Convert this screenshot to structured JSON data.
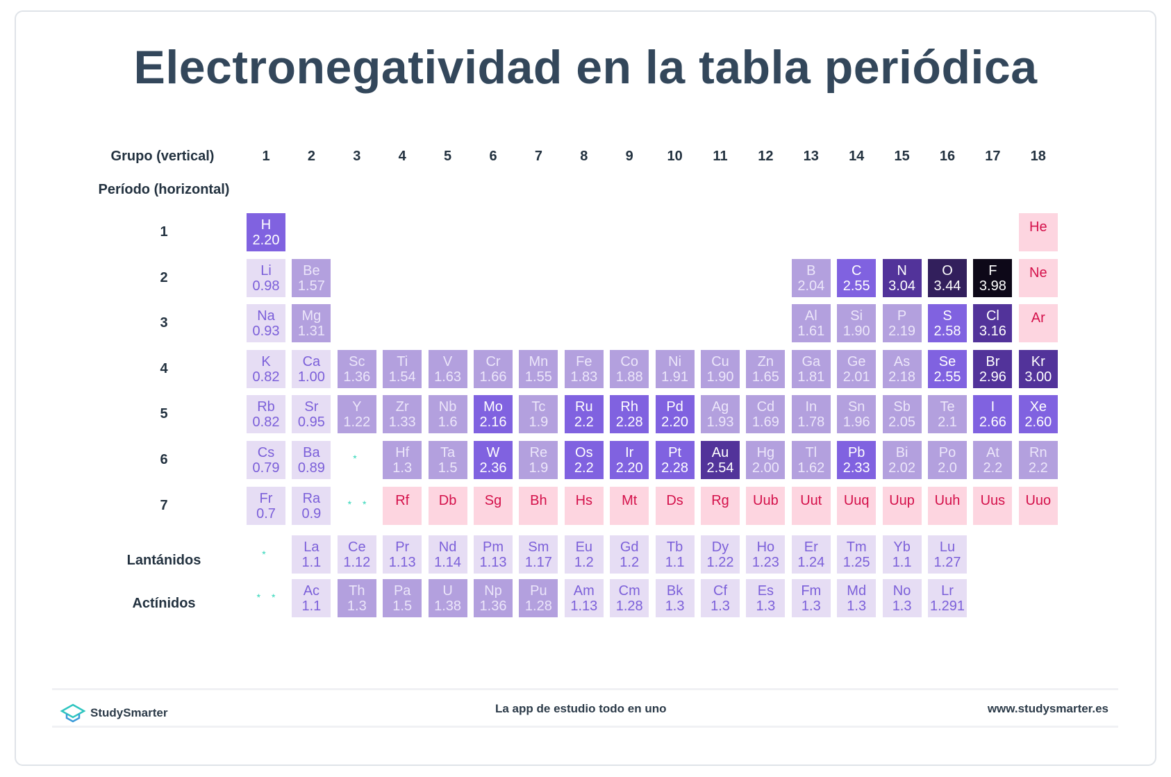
{
  "title": "Electronegatividad en la tabla periódica",
  "group_label": "Grupo (vertical)",
  "period_label": "Período (horizontal)",
  "groups": [
    "1",
    "2",
    "3",
    "4",
    "5",
    "6",
    "7",
    "8",
    "9",
    "10",
    "11",
    "12",
    "13",
    "14",
    "15",
    "16",
    "17",
    "18"
  ],
  "periods": [
    "1",
    "2",
    "3",
    "4",
    "5",
    "6",
    "7"
  ],
  "lanthanides_label": "Lantánidos",
  "actinides_label": "Actínidos",
  "lanthanide_marker": "*",
  "actinide_marker": "* *",
  "colors": {
    "light": "#e6ddf4",
    "mid": "#b3a0de",
    "bright": "#8062e0",
    "dark": "#52339a",
    "darker": "#321f5c",
    "darkest": "#0d0818",
    "no_data": "#fdd5e0",
    "no_data_text": "#d4104a"
  },
  "chart_data": {
    "type": "table",
    "title": "Electronegatividad en la tabla periódica",
    "levels": {
      "l": "light",
      "m": "mid",
      "b": "bright",
      "d": "dark",
      "o": "darker",
      "f": "darkest",
      "p": "no data"
    },
    "rows": [
      [
        [
          1,
          "H",
          "2.20",
          "b"
        ],
        [
          18,
          "He",
          "",
          "p"
        ]
      ],
      [
        [
          1,
          "Li",
          "0.98",
          "l"
        ],
        [
          2,
          "Be",
          "1.57",
          "m"
        ],
        [
          13,
          "B",
          "2.04",
          "m"
        ],
        [
          14,
          "C",
          "2.55",
          "b"
        ],
        [
          15,
          "N",
          "3.04",
          "d"
        ],
        [
          16,
          "O",
          "3.44",
          "o"
        ],
        [
          17,
          "F",
          "3.98",
          "f"
        ],
        [
          18,
          "Ne",
          "",
          "p"
        ]
      ],
      [
        [
          1,
          "Na",
          "0.93",
          "l"
        ],
        [
          2,
          "Mg",
          "1.31",
          "m"
        ],
        [
          13,
          "Al",
          "1.61",
          "m"
        ],
        [
          14,
          "Si",
          "1.90",
          "m"
        ],
        [
          15,
          "P",
          "2.19",
          "m"
        ],
        [
          16,
          "S",
          "2.58",
          "b"
        ],
        [
          17,
          "Cl",
          "3.16",
          "d"
        ],
        [
          18,
          "Ar",
          "",
          "p"
        ]
      ],
      [
        [
          1,
          "K",
          "0.82",
          "l"
        ],
        [
          2,
          "Ca",
          "1.00",
          "l"
        ],
        [
          3,
          "Sc",
          "1.36",
          "m"
        ],
        [
          4,
          "Ti",
          "1.54",
          "m"
        ],
        [
          5,
          "V",
          "1.63",
          "m"
        ],
        [
          6,
          "Cr",
          "1.66",
          "m"
        ],
        [
          7,
          "Mn",
          "1.55",
          "m"
        ],
        [
          8,
          "Fe",
          "1.83",
          "m"
        ],
        [
          9,
          "Co",
          "1.88",
          "m"
        ],
        [
          10,
          "Ni",
          "1.91",
          "m"
        ],
        [
          11,
          "Cu",
          "1.90",
          "m"
        ],
        [
          12,
          "Zn",
          "1.65",
          "m"
        ],
        [
          13,
          "Ga",
          "1.81",
          "m"
        ],
        [
          14,
          "Ge",
          "2.01",
          "m"
        ],
        [
          15,
          "As",
          "2.18",
          "m"
        ],
        [
          16,
          "Se",
          "2.55",
          "b"
        ],
        [
          17,
          "Br",
          "2.96",
          "d"
        ],
        [
          18,
          "Kr",
          "3.00",
          "d"
        ]
      ],
      [
        [
          1,
          "Rb",
          "0.82",
          "l"
        ],
        [
          2,
          "Sr",
          "0.95",
          "l"
        ],
        [
          3,
          "Y",
          "1.22",
          "m"
        ],
        [
          4,
          "Zr",
          "1.33",
          "m"
        ],
        [
          5,
          "Nb",
          "1.6",
          "m"
        ],
        [
          6,
          "Mo",
          "2.16",
          "b"
        ],
        [
          7,
          "Tc",
          "1.9",
          "m"
        ],
        [
          8,
          "Ru",
          "2.2",
          "b"
        ],
        [
          9,
          "Rh",
          "2.28",
          "b"
        ],
        [
          10,
          "Pd",
          "2.20",
          "b"
        ],
        [
          11,
          "Ag",
          "1.93",
          "m"
        ],
        [
          12,
          "Cd",
          "1.69",
          "m"
        ],
        [
          13,
          "In",
          "1.78",
          "m"
        ],
        [
          14,
          "Sn",
          "1.96",
          "m"
        ],
        [
          15,
          "Sb",
          "2.05",
          "m"
        ],
        [
          16,
          "Te",
          "2.1",
          "m"
        ],
        [
          17,
          "I",
          "2.66",
          "b"
        ],
        [
          18,
          "Xe",
          "2.60",
          "b"
        ]
      ],
      [
        [
          1,
          "Cs",
          "0.79",
          "l"
        ],
        [
          2,
          "Ba",
          "0.89",
          "l"
        ],
        [
          4,
          "Hf",
          "1.3",
          "m"
        ],
        [
          5,
          "Ta",
          "1.5",
          "m"
        ],
        [
          6,
          "W",
          "2.36",
          "b"
        ],
        [
          7,
          "Re",
          "1.9",
          "m"
        ],
        [
          8,
          "Os",
          "2.2",
          "b"
        ],
        [
          9,
          "Ir",
          "2.20",
          "b"
        ],
        [
          10,
          "Pt",
          "2.28",
          "b"
        ],
        [
          11,
          "Au",
          "2.54",
          "d"
        ],
        [
          12,
          "Hg",
          "2.00",
          "m"
        ],
        [
          13,
          "Tl",
          "1.62",
          "m"
        ],
        [
          14,
          "Pb",
          "2.33",
          "b"
        ],
        [
          15,
          "Bi",
          "2.02",
          "m"
        ],
        [
          16,
          "Po",
          "2.0",
          "m"
        ],
        [
          17,
          "At",
          "2.2",
          "m"
        ],
        [
          18,
          "Rn",
          "2.2",
          "m"
        ]
      ],
      [
        [
          1,
          "Fr",
          "0.7",
          "l"
        ],
        [
          2,
          "Ra",
          "0.9",
          "l"
        ],
        [
          4,
          "Rf",
          "",
          "p"
        ],
        [
          5,
          "Db",
          "",
          "p"
        ],
        [
          6,
          "Sg",
          "",
          "p"
        ],
        [
          7,
          "Bh",
          "",
          "p"
        ],
        [
          8,
          "Hs",
          "",
          "p"
        ],
        [
          9,
          "Mt",
          "",
          "p"
        ],
        [
          10,
          "Ds",
          "",
          "p"
        ],
        [
          11,
          "Rg",
          "",
          "p"
        ],
        [
          12,
          "Uub",
          "",
          "p"
        ],
        [
          13,
          "Uut",
          "",
          "p"
        ],
        [
          14,
          "Uuq",
          "",
          "p"
        ],
        [
          15,
          "Uup",
          "",
          "p"
        ],
        [
          16,
          "Uuh",
          "",
          "p"
        ],
        [
          17,
          "Uus",
          "",
          "p"
        ],
        [
          18,
          "Uuo",
          "",
          "p"
        ]
      ]
    ],
    "lanthanides": [
      [
        "La",
        "1.1",
        "l"
      ],
      [
        "Ce",
        "1.12",
        "l"
      ],
      [
        "Pr",
        "1.13",
        "l"
      ],
      [
        "Nd",
        "1.14",
        "l"
      ],
      [
        "Pm",
        "1.13",
        "l"
      ],
      [
        "Sm",
        "1.17",
        "l"
      ],
      [
        "Eu",
        "1.2",
        "l"
      ],
      [
        "Gd",
        "1.2",
        "l"
      ],
      [
        "Tb",
        "1.1",
        "l"
      ],
      [
        "Dy",
        "1.22",
        "l"
      ],
      [
        "Ho",
        "1.23",
        "l"
      ],
      [
        "Er",
        "1.24",
        "l"
      ],
      [
        "Tm",
        "1.25",
        "l"
      ],
      [
        "Yb",
        "1.1",
        "l"
      ],
      [
        "Lu",
        "1.27",
        "l"
      ]
    ],
    "actinides": [
      [
        "Ac",
        "1.1",
        "l"
      ],
      [
        "Th",
        "1.3",
        "m"
      ],
      [
        "Pa",
        "1.5",
        "m"
      ],
      [
        "U",
        "1.38",
        "m"
      ],
      [
        "Np",
        "1.36",
        "m"
      ],
      [
        "Pu",
        "1.28",
        "m"
      ],
      [
        "Am",
        "1.13",
        "l"
      ],
      [
        "Cm",
        "1.28",
        "l"
      ],
      [
        "Bk",
        "1.3",
        "l"
      ],
      [
        "Cf",
        "1.3",
        "l"
      ],
      [
        "Es",
        "1.3",
        "l"
      ],
      [
        "Fm",
        "1.3",
        "l"
      ],
      [
        "Md",
        "1.3",
        "l"
      ],
      [
        "No",
        "1.3",
        "l"
      ],
      [
        "Lr",
        "1.291",
        "l"
      ]
    ]
  },
  "footer": {
    "brand": "StudySmarter",
    "tagline": "La app de estudio todo en uno",
    "url": "www.studysmarter.es"
  }
}
